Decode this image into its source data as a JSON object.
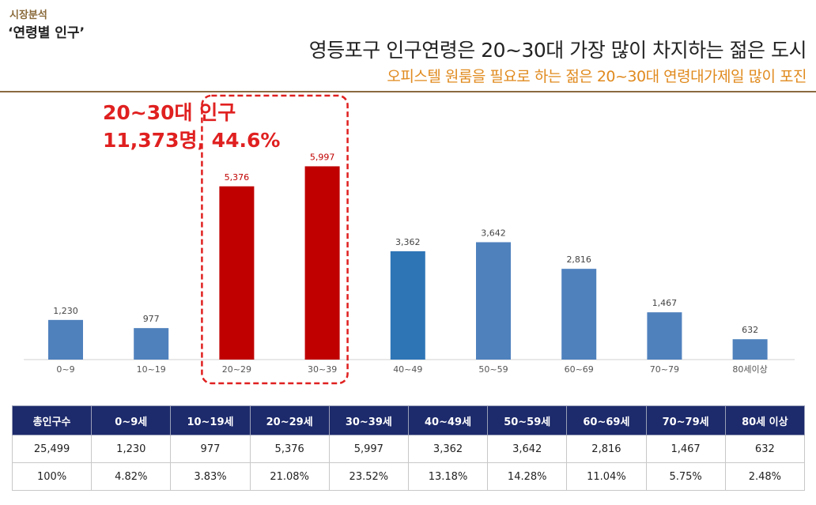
{
  "header": {
    "section_label": "시장분석",
    "section_title": "‘연령별 인구’",
    "headline": "영등포구 인구연령은 20~30대 가장 많이 차지하는 젊은 도시",
    "subheadline": "오피스텔 원룸을 필요로 하는 젊은 20~30대 연령대가제일 많이 포진"
  },
  "highlight": {
    "line1": "20~30대 인구",
    "line2": "11,373명, 44.6%"
  },
  "chart_data": {
    "type": "bar",
    "categories": [
      "0~9",
      "10~19",
      "20~29",
      "30~39",
      "40~49",
      "50~59",
      "60~69",
      "70~79",
      "80세이상"
    ],
    "values": [
      1230,
      977,
      5376,
      5997,
      3362,
      3642,
      2816,
      1467,
      632
    ],
    "data_labels": [
      "1,230",
      "977",
      "5,376",
      "5,997",
      "3,362",
      "3,642",
      "2,816",
      "1,467",
      "632"
    ],
    "colors": [
      "#4f81bd",
      "#4f81bd",
      "#c00000",
      "#c00000",
      "#2e75b6",
      "#4f81bd",
      "#4f81bd",
      "#4f81bd",
      "#4f81bd"
    ],
    "highlighted_categories": [
      "20~29",
      "30~39"
    ],
    "ylim": [
      0,
      6400
    ],
    "grid": false
  },
  "table": {
    "headers": [
      "총인구수",
      "0~9세",
      "10~19세",
      "20~29세",
      "30~39세",
      "40~49세",
      "50~59세",
      "60~69세",
      "70~79세",
      "80세 이상"
    ],
    "rows": [
      [
        "25,499",
        "1,230",
        "977",
        "5,376",
        "5,997",
        "3,362",
        "3,642",
        "2,816",
        "1,467",
        "632"
      ],
      [
        "100%",
        "4.82%",
        "3.83%",
        "21.08%",
        "23.52%",
        "13.18%",
        "14.28%",
        "11.04%",
        "5.75%",
        "2.48%"
      ]
    ]
  },
  "colors": {
    "header_fill": "#1d2a6b",
    "accent_orange": "#e08a1e",
    "highlight_red": "#e02020",
    "rule_brown": "#8b6a3f"
  }
}
